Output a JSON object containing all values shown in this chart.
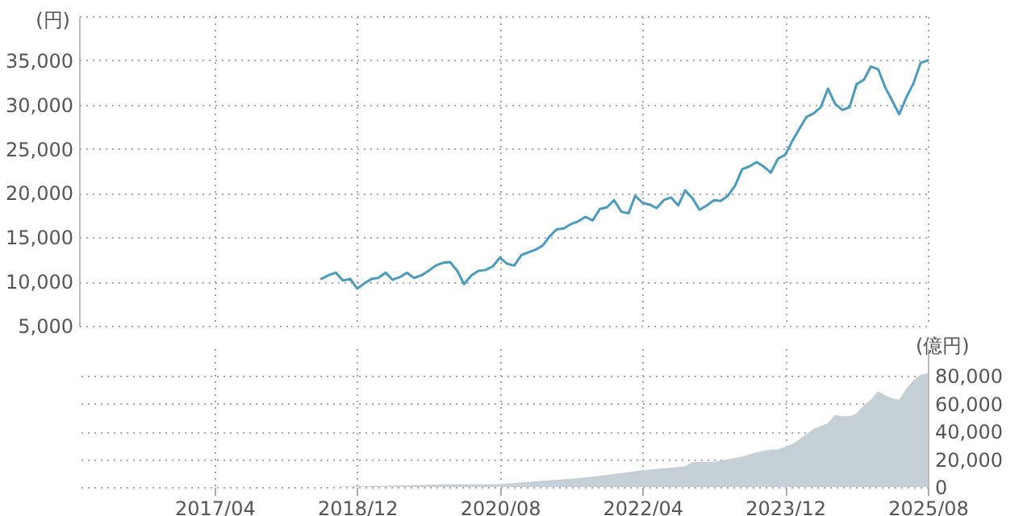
{
  "chart_data": [
    {
      "type": "line",
      "ylabel": "(円)",
      "xlim": [
        "2015-09",
        "2025-08"
      ],
      "ylim": [
        5000,
        40000
      ],
      "yticks": [
        {
          "value": 5000,
          "label": "5,000"
        },
        {
          "value": 10000,
          "label": "10,000"
        },
        {
          "value": 15000,
          "label": "15,000"
        },
        {
          "value": 20000,
          "label": "20,000"
        },
        {
          "value": 25000,
          "label": "25,000"
        },
        {
          "value": 30000,
          "label": "30,000"
        },
        {
          "value": 35000,
          "label": "35,000"
        },
        {
          "value": 40000,
          "label": null
        }
      ],
      "xticks": [
        {
          "value": "2017-04",
          "label": null
        },
        {
          "value": "2018-12",
          "label": null
        },
        {
          "value": "2020-08",
          "label": null
        },
        {
          "value": "2022-04",
          "label": null
        },
        {
          "value": "2023-12",
          "label": null
        },
        {
          "value": "2025-08",
          "label": null
        }
      ],
      "grid": true,
      "tick_labels": "y",
      "x": [
        "2018-07",
        "2018-08",
        "2018-09",
        "2018-10",
        "2018-11",
        "2018-12",
        "2019-01",
        "2019-02",
        "2019-03",
        "2019-04",
        "2019-05",
        "2019-06",
        "2019-07",
        "2019-08",
        "2019-09",
        "2019-10",
        "2019-11",
        "2019-12",
        "2020-01",
        "2020-02",
        "2020-03",
        "2020-04",
        "2020-05",
        "2020-06",
        "2020-07",
        "2020-08",
        "2020-09",
        "2020-10",
        "2020-11",
        "2020-12",
        "2021-01",
        "2021-02",
        "2021-03",
        "2021-04",
        "2021-05",
        "2021-06",
        "2021-07",
        "2021-08",
        "2021-09",
        "2021-10",
        "2021-11",
        "2021-12",
        "2022-01",
        "2022-02",
        "2022-03",
        "2022-04",
        "2022-05",
        "2022-06",
        "2022-07",
        "2022-08",
        "2022-09",
        "2022-10",
        "2022-11",
        "2022-12",
        "2023-01",
        "2023-02",
        "2023-03",
        "2023-04",
        "2023-05",
        "2023-06",
        "2023-07",
        "2023-08",
        "2023-09",
        "2023-10",
        "2023-11",
        "2023-12",
        "2024-01",
        "2024-02",
        "2024-03",
        "2024-04",
        "2024-05",
        "2024-06",
        "2024-07",
        "2024-08",
        "2024-09",
        "2024-10",
        "2024-11",
        "2024-12",
        "2025-01",
        "2025-02",
        "2025-03",
        "2025-04",
        "2025-05",
        "2025-06",
        "2025-07",
        "2025-08"
      ],
      "series": [
        {
          "color": "#4a9ac2",
          "values": [
            10300,
            10700,
            11000,
            10100,
            10300,
            9200,
            9800,
            10300,
            10400,
            11000,
            10200,
            10500,
            11000,
            10400,
            10700,
            11200,
            11800,
            12100,
            12200,
            11200,
            9700,
            10700,
            11200,
            11300,
            11700,
            12700,
            12000,
            11800,
            13000,
            13300,
            13600,
            14100,
            15100,
            15900,
            16000,
            16500,
            16800,
            17300,
            16900,
            18200,
            18400,
            19200,
            17900,
            17700,
            19700,
            18900,
            18700,
            18300,
            19200,
            19500,
            18600,
            20300,
            19400,
            18100,
            18600,
            19200,
            19100,
            19700,
            20800,
            22700,
            23000,
            23500,
            23000,
            22300,
            23900,
            24300,
            25900,
            27300,
            28600,
            29000,
            29700,
            31800,
            30100,
            29400,
            29700,
            32300,
            32800,
            34300,
            34000,
            31900,
            30500,
            28900,
            30800,
            32400,
            34700,
            35000
          ]
        }
      ]
    },
    {
      "type": "area",
      "y2label": "(億円)",
      "xlim": [
        "2015-09",
        "2025-08"
      ],
      "y2lim": [
        0,
        100000
      ],
      "y2ticks": [
        {
          "value": 0,
          "label": "0"
        },
        {
          "value": 20000,
          "label": "20,000"
        },
        {
          "value": 40000,
          "label": "40,000"
        },
        {
          "value": 60000,
          "label": "60,000"
        },
        {
          "value": 80000,
          "label": "80,000"
        }
      ],
      "xticks": [
        {
          "value": "2017-04",
          "label": "2017/04"
        },
        {
          "value": "2018-12",
          "label": "2018/12"
        },
        {
          "value": "2020-08",
          "label": "2020/08"
        },
        {
          "value": "2022-04",
          "label": "2022/04"
        },
        {
          "value": "2023-12",
          "label": "2023/12"
        },
        {
          "value": "2025-08",
          "label": "2025/08"
        }
      ],
      "grid": true,
      "series": [
        {
          "color": "#c5cfd6",
          "axis": "y2",
          "x": [
            "2018-07",
            "2019-06",
            "2020-01",
            "2020-08",
            "2021-01",
            "2021-06",
            "2021-10",
            "2022-01",
            "2022-04",
            "2022-08",
            "2022-10",
            "2022-11",
            "2023-02",
            "2023-06",
            "2023-08",
            "2023-10",
            "2023-11",
            "2024-01",
            "2024-03",
            "2024-04",
            "2024-06",
            "2024-07",
            "2024-08",
            "2024-09",
            "2024-10",
            "2024-11",
            "2024-12",
            "2025-01",
            "2025-02",
            "2025-03",
            "2025-04",
            "2025-05",
            "2025-06",
            "2025-07",
            "2025-08"
          ],
          "values": [
            0,
            1000,
            2000,
            2000,
            4000,
            6000,
            8000,
            10000,
            12000,
            14000,
            15000,
            18000,
            18000,
            22000,
            25000,
            27000,
            27000,
            31000,
            38000,
            42000,
            46000,
            52000,
            51000,
            51000,
            53000,
            59000,
            63000,
            69000,
            66000,
            64000,
            63000,
            71000,
            77000,
            81000,
            82000
          ]
        }
      ]
    }
  ]
}
